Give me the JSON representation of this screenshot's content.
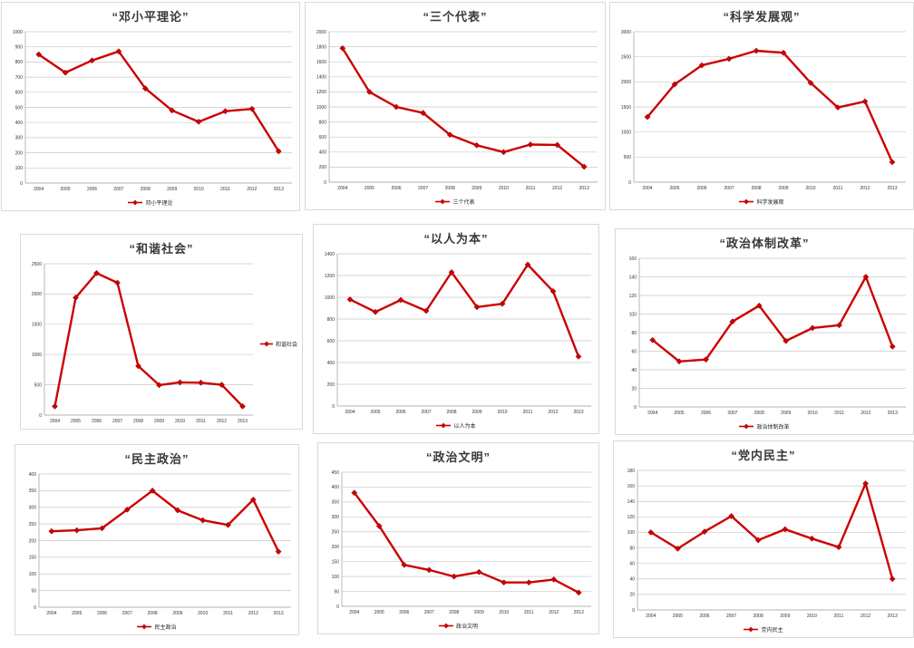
{
  "page": {
    "background": "#ffffff"
  },
  "series_color": "#cc0000",
  "marker_edge_color": "#8e0b0b",
  "gridline_color": "#c9c9c9",
  "axis_color": "#9a9a9a",
  "categories": [
    "2004",
    "2005",
    "2006",
    "2007",
    "2008",
    "2009",
    "2010",
    "2011",
    "2012",
    "2013"
  ],
  "chart_data": [
    {
      "type": "line",
      "title": "“邓小平理论”",
      "legend": "邓小平理论",
      "legend_position": "bottom",
      "color": "#cc0000",
      "categories": [
        "2004",
        "2005",
        "2006",
        "2007",
        "2008",
        "2009",
        "2010",
        "2011",
        "2012",
        "2013"
      ],
      "values": [
        850,
        730,
        810,
        870,
        625,
        480,
        405,
        475,
        490,
        210
      ],
      "ylim": [
        0,
        1000
      ],
      "ytick": 100,
      "grid": true
    },
    {
      "type": "line",
      "title": "“三个代表”",
      "legend": "三个代表",
      "legend_position": "bottom",
      "color": "#cc0000",
      "categories": [
        "2004",
        "2005",
        "2006",
        "2007",
        "2008",
        "2009",
        "2010",
        "2011",
        "2012",
        "2013"
      ],
      "values": [
        1780,
        1200,
        1000,
        920,
        630,
        490,
        400,
        500,
        495,
        205
      ],
      "ylim": [
        0,
        2000
      ],
      "ytick": 200,
      "grid": true
    },
    {
      "type": "line",
      "title": "“科学发展观”",
      "legend": "科学发展观",
      "legend_position": "bottom",
      "color": "#cc0000",
      "categories": [
        "2004",
        "2005",
        "2006",
        "2007",
        "2008",
        "2009",
        "2010",
        "2011",
        "2012",
        "2013"
      ],
      "values": [
        1300,
        1950,
        2330,
        2460,
        2620,
        2580,
        1980,
        1490,
        1610,
        400
      ],
      "ylim": [
        0,
        3000
      ],
      "ytick": 500,
      "grid": true
    },
    {
      "type": "line",
      "title": "“和谐社会”",
      "legend": "和谐社会",
      "legend_position": "right",
      "color": "#cc0000",
      "categories": [
        "2004",
        "2005",
        "2006",
        "2007",
        "2008",
        "2009",
        "2010",
        "2011",
        "2012",
        "2013"
      ],
      "values": [
        145,
        1940,
        2345,
        2185,
        810,
        495,
        540,
        535,
        500,
        145
      ],
      "ylim": [
        0,
        2500
      ],
      "ytick": 500,
      "grid": true
    },
    {
      "type": "line",
      "title": "“以人为本”",
      "legend": "以人为本",
      "legend_position": "bottom",
      "color": "#cc0000",
      "categories": [
        "2004",
        "2005",
        "2006",
        "2007",
        "2008",
        "2009",
        "2010",
        "2011",
        "2012",
        "2013"
      ],
      "values": [
        980,
        865,
        975,
        875,
        1230,
        910,
        940,
        1300,
        1055,
        455
      ],
      "ylim": [
        0,
        1400
      ],
      "ytick": 200,
      "grid": true
    },
    {
      "type": "line",
      "title": "“政治体制改革”",
      "legend": "政治体制改革",
      "legend_position": "bottom",
      "color": "#cc0000",
      "categories": [
        "2004",
        "2005",
        "2006",
        "2007",
        "2008",
        "2009",
        "2010",
        "2011",
        "2012",
        "2013"
      ],
      "values": [
        72,
        49,
        51,
        92,
        109,
        71,
        85,
        88,
        140,
        65
      ],
      "ylim": [
        0,
        160
      ],
      "ytick": 20,
      "grid": true
    },
    {
      "type": "line",
      "title": "“民主政治”",
      "legend": "民主政治",
      "legend_position": "bottom",
      "color": "#cc0000",
      "categories": [
        "2004",
        "2005",
        "2006",
        "2007",
        "2008",
        "2009",
        "2010",
        "2011",
        "2012",
        "2013"
      ],
      "values": [
        228,
        231,
        237,
        293,
        350,
        291,
        261,
        247,
        323,
        167
      ],
      "ylim": [
        0,
        400
      ],
      "ytick": 50,
      "grid": true
    },
    {
      "type": "line",
      "title": "“政治文明”",
      "legend": "政治文明",
      "legend_position": "bottom",
      "color": "#cc0000",
      "categories": [
        "2004",
        "2005",
        "2006",
        "2007",
        "2008",
        "2009",
        "2010",
        "2011",
        "2012",
        "2013"
      ],
      "values": [
        381,
        269,
        139,
        122,
        100,
        115,
        80,
        80,
        90,
        46
      ],
      "ylim": [
        0,
        450
      ],
      "ytick": 50,
      "grid": true
    },
    {
      "type": "line",
      "title": "“党内民主”",
      "legend": "党内民主",
      "legend_position": "bottom",
      "color": "#cc0000",
      "categories": [
        "2004",
        "2005",
        "2006",
        "2007",
        "2008",
        "2009",
        "2010",
        "2011",
        "2012",
        "2013"
      ],
      "values": [
        100,
        79,
        101,
        121,
        90,
        104,
        92,
        81,
        163,
        40
      ],
      "ylim": [
        0,
        180
      ],
      "ytick": 20,
      "grid": true
    }
  ]
}
